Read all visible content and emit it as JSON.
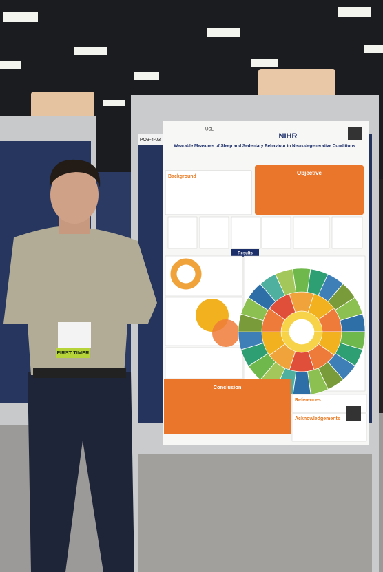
{
  "poster": {
    "board_label": "PO3-4-03",
    "funder": "NIHR",
    "title": "Wearable Measures of Sleep and Sedentary Behaviour in Neurodegenerative Conditions",
    "sections": {
      "background": "Background",
      "objective": "Objective",
      "results": "Results",
      "conclusion": "Conclusion",
      "references": "References",
      "acknowledgements": "Acknowledgements"
    }
  },
  "badge": {
    "ribbon": "FIRST TIMER"
  }
}
